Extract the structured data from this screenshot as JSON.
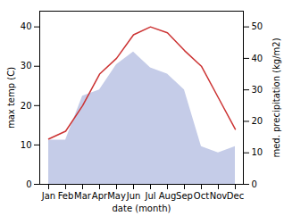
{
  "chart_data": {
    "type": "line",
    "categories": [
      "Jan",
      "Feb",
      "Mar",
      "Apr",
      "May",
      "Jun",
      "Jul",
      "Aug",
      "Sep",
      "Oct",
      "Nov",
      "Dec"
    ],
    "xlabel": "date (month)",
    "ylabel": "max temp (C)",
    "y2label": "med. precipitation (kg/m2)",
    "ylim": [
      0,
      44
    ],
    "yticks": [
      0,
      10,
      20,
      30,
      40
    ],
    "y2lim": [
      0,
      55
    ],
    "y2ticks": [
      0,
      10,
      20,
      30,
      40,
      50
    ],
    "series": [
      {
        "type": "area",
        "color": "#c5cce8",
        "axis": "y2",
        "values": [
          14.0,
          14.0,
          28.0,
          30.0,
          38.0,
          42.0,
          37.0,
          35.0,
          30.0,
          12.0,
          10.0,
          12.0
        ]
      },
      {
        "type": "line",
        "color": "#cc3333",
        "values": [
          11.5,
          13.5,
          20.0,
          28.0,
          32.0,
          38.0,
          40.0,
          38.5,
          34.0,
          30.0,
          22.0,
          14.0
        ]
      }
    ]
  }
}
